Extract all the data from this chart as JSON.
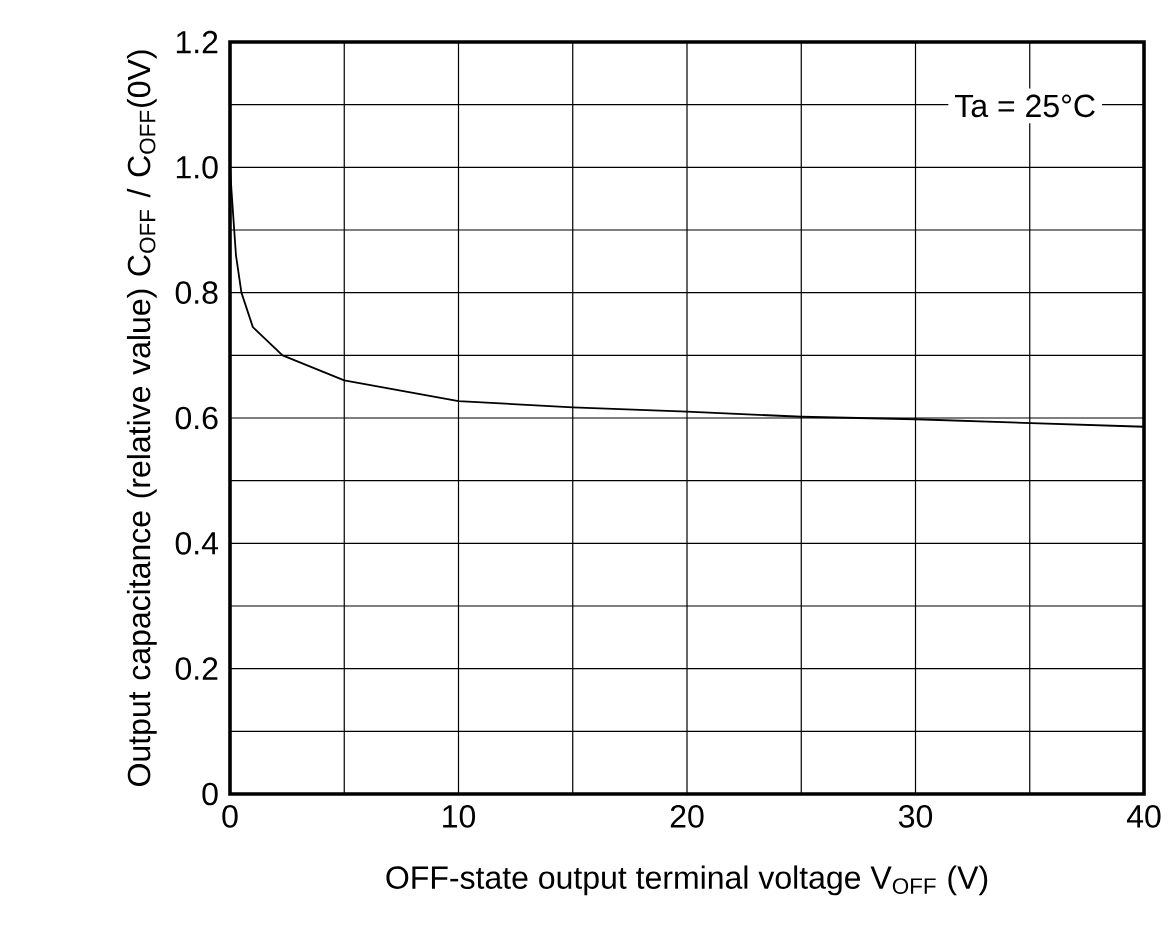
{
  "chart_data": {
    "type": "line",
    "xlabel": "OFF-state output terminal voltage V$_{OFF}$ (V)",
    "ylabel": "Output capacitance (relative value) C$_{OFF}$ / C$_{OFF}$(0V)",
    "annotations": [
      "Ta = 25°C"
    ],
    "x": [
      0,
      0.07,
      0.26,
      0.5,
      1,
      2.3,
      5,
      10,
      15,
      20,
      25,
      30,
      35,
      40
    ],
    "series": [
      {
        "color": "#000000",
        "values": [
          1.0,
          0.96,
          0.86,
          0.8,
          0.745,
          0.7,
          0.66,
          0.627,
          0.617,
          0.61,
          0.602,
          0.598,
          0.592,
          0.586
        ]
      }
    ],
    "xlim": [
      0,
      40
    ],
    "ylim": [
      0,
      1.2
    ],
    "xticks": [
      0,
      {
        "value": 5,
        "label": null
      },
      10,
      {
        "value": 15,
        "label": null
      },
      20,
      {
        "value": 25,
        "label": null
      },
      30,
      {
        "value": 35,
        "label": null
      },
      40
    ],
    "yticks": [
      "0",
      {
        "value": 0.1,
        "label": null
      },
      {
        "value": 0.2,
        "label": "0.2"
      },
      {
        "value": 0.3,
        "label": null
      },
      {
        "value": 0.4,
        "label": "0.4"
      },
      {
        "value": 0.5,
        "label": null
      },
      {
        "value": 0.6,
        "label": "0.6"
      },
      {
        "value": 0.7,
        "label": null
      },
      {
        "value": 0.8,
        "label": "0.8"
      },
      {
        "value": 0.9,
        "label": null
      },
      {
        "value": 1.0,
        "label": "1.0"
      },
      {
        "value": 1.1,
        "label": null
      },
      {
        "value": 1.2,
        "label": "1.2"
      }
    ],
    "grid": true,
    "marker": "none",
    "line_style": "solid"
  }
}
